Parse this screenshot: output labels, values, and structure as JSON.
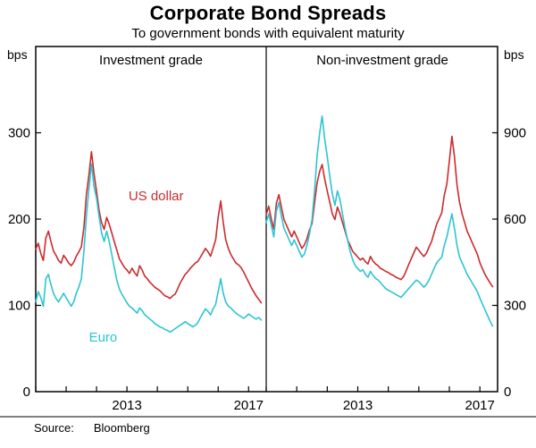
{
  "header": {
    "title": "Corporate Bond Spreads",
    "subtitle": "To government bonds with equivalent maturity"
  },
  "axes": {
    "left_unit": "bps",
    "right_unit": "bps"
  },
  "source": {
    "label": "Source:",
    "value": "Bloomberg"
  },
  "colors": {
    "us_dollar": "#cc2a2e",
    "euro": "#2cc5d2",
    "axis": "#000000"
  },
  "chart_data": {
    "type": "line",
    "title": "Corporate Bond Spreads",
    "subtitle": "To government bonds with equivalent maturity",
    "x_start": 2010.0,
    "points_per_year": 12,
    "x_domain": [
      2010.0,
      2017.58
    ],
    "x_ticks": [
      2010,
      2011,
      2012,
      2013,
      2014,
      2015,
      2016,
      2017
    ],
    "x_tick_labels": [
      {
        "year": 2013,
        "label": "2013"
      },
      {
        "year": 2017,
        "label": "2017"
      }
    ],
    "panels": [
      {
        "title": "Investment grade",
        "side": "left",
        "unit": "bps",
        "ylim": [
          0,
          400
        ],
        "yticks": [
          0,
          100,
          200,
          300
        ]
      },
      {
        "title": "Non-investment grade",
        "side": "right",
        "unit": "bps",
        "ylim": [
          0,
          1200
        ],
        "yticks": [
          0,
          300,
          600,
          900
        ]
      }
    ],
    "series": [
      {
        "name": "US dollar",
        "panel": 0,
        "color": "#cc2a2e",
        "values": [
          165,
          172,
          160,
          152,
          178,
          186,
          174,
          163,
          158,
          152,
          149,
          158,
          154,
          149,
          146,
          150,
          157,
          162,
          168,
          190,
          228,
          252,
          278,
          253,
          232,
          210,
          196,
          188,
          202,
          194,
          184,
          174,
          164,
          154,
          149,
          144,
          141,
          137,
          143,
          138,
          134,
          146,
          141,
          134,
          131,
          127,
          124,
          121,
          119,
          117,
          114,
          111,
          110,
          108,
          111,
          113,
          119,
          126,
          131,
          136,
          139,
          143,
          146,
          149,
          151,
          156,
          161,
          166,
          162,
          157,
          166,
          176,
          202,
          221,
          196,
          176,
          166,
          159,
          154,
          149,
          147,
          144,
          139,
          133,
          127,
          121,
          116,
          111,
          107,
          103
        ]
      },
      {
        "name": "Euro",
        "panel": 0,
        "color": "#2cc5d2",
        "values": [
          104,
          116,
          109,
          99,
          131,
          136,
          124,
          114,
          108,
          104,
          109,
          114,
          109,
          104,
          99,
          104,
          114,
          121,
          131,
          162,
          203,
          236,
          264,
          238,
          224,
          203,
          184,
          174,
          186,
          174,
          159,
          144,
          129,
          119,
          113,
          108,
          103,
          99,
          97,
          94,
          91,
          97,
          94,
          89,
          87,
          84,
          82,
          79,
          77,
          75,
          74,
          72,
          71,
          69,
          71,
          73,
          75,
          77,
          79,
          81,
          79,
          77,
          75,
          77,
          80,
          86,
          91,
          96,
          93,
          89,
          96,
          101,
          116,
          131,
          114,
          104,
          99,
          97,
          94,
          91,
          89,
          87,
          85,
          87,
          90,
          88,
          86,
          84,
          86,
          83
        ]
      },
      {
        "name": "US dollar",
        "panel": 1,
        "color": "#cc2a2e",
        "values": [
          615,
          645,
          600,
          565,
          655,
          685,
          640,
          598,
          578,
          558,
          538,
          558,
          538,
          518,
          498,
          510,
          532,
          562,
          585,
          655,
          725,
          765,
          790,
          738,
          698,
          658,
          618,
          598,
          642,
          618,
          588,
          558,
          528,
          508,
          488,
          478,
          468,
          458,
          464,
          452,
          444,
          470,
          454,
          444,
          438,
          428,
          424,
          418,
          414,
          408,
          404,
          398,
          394,
          390,
          400,
          420,
          442,
          462,
          482,
          502,
          492,
          480,
          470,
          482,
          502,
          522,
          552,
          582,
          602,
          622,
          682,
          722,
          802,
          888,
          818,
          718,
          658,
          618,
          588,
          558,
          538,
          518,
          498,
          478,
          448,
          428,
          408,
          393,
          378,
          365
        ]
      },
      {
        "name": "Euro",
        "panel": 1,
        "color": "#2cc5d2",
        "values": [
          588,
          618,
          578,
          538,
          628,
          658,
          608,
          568,
          548,
          528,
          508,
          528,
          508,
          488,
          468,
          478,
          508,
          548,
          598,
          698,
          818,
          898,
          958,
          878,
          818,
          748,
          688,
          648,
          698,
          668,
          618,
          568,
          528,
          488,
          458,
          438,
          428,
          418,
          424,
          408,
          398,
          418,
          404,
          394,
          388,
          378,
          368,
          358,
          353,
          348,
          343,
          338,
          333,
          328,
          338,
          348,
          358,
          368,
          378,
          388,
          383,
          373,
          363,
          373,
          388,
          408,
          428,
          448,
          458,
          468,
          508,
          538,
          578,
          618,
          568,
          508,
          468,
          448,
          428,
          408,
          393,
          378,
          363,
          348,
          325,
          305,
          285,
          265,
          245,
          228
        ]
      }
    ],
    "annotations": [
      {
        "text": "US dollar",
        "color": "#cc2a2e",
        "panel": 0,
        "x": 2013.05,
        "y": 222
      },
      {
        "text": "Euro",
        "color": "#2cc5d2",
        "panel": 0,
        "x": 2011.75,
        "y": 58
      }
    ]
  }
}
